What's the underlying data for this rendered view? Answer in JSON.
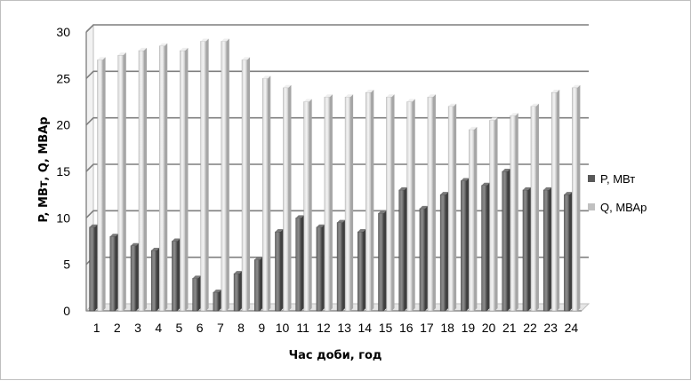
{
  "chart_data": {
    "type": "bar",
    "xlabel": "Час доби, год",
    "ylabel": "P, МВт,    Q, МВАр",
    "ylim": [
      0,
      30
    ],
    "yticks": [
      0,
      5,
      10,
      15,
      20,
      25,
      30
    ],
    "grid": true,
    "legend_position": "right",
    "categories": [
      "1",
      "2",
      "3",
      "4",
      "5",
      "6",
      "7",
      "8",
      "9",
      "10",
      "11",
      "12",
      "13",
      "14",
      "15",
      "16",
      "17",
      "18",
      "19",
      "20",
      "21",
      "22",
      "23",
      "24"
    ],
    "series": [
      {
        "name": "P, МВт",
        "color": "#595959",
        "values": [
          9,
          8,
          7,
          6.5,
          7.5,
          3.5,
          2,
          4,
          5.5,
          8.5,
          10,
          9,
          9.5,
          8.5,
          10.5,
          13,
          11,
          12.5,
          14,
          13.5,
          15,
          13,
          13,
          12.5
        ]
      },
      {
        "name": "Q, МВАр",
        "color": "#c0c0c0",
        "values": [
          27,
          27.5,
          28,
          28.5,
          28,
          29,
          29,
          27,
          25,
          24,
          22.5,
          23,
          23,
          23.5,
          23,
          22.5,
          23,
          22,
          19.5,
          20.5,
          21,
          22,
          23.5,
          24
        ]
      }
    ]
  }
}
